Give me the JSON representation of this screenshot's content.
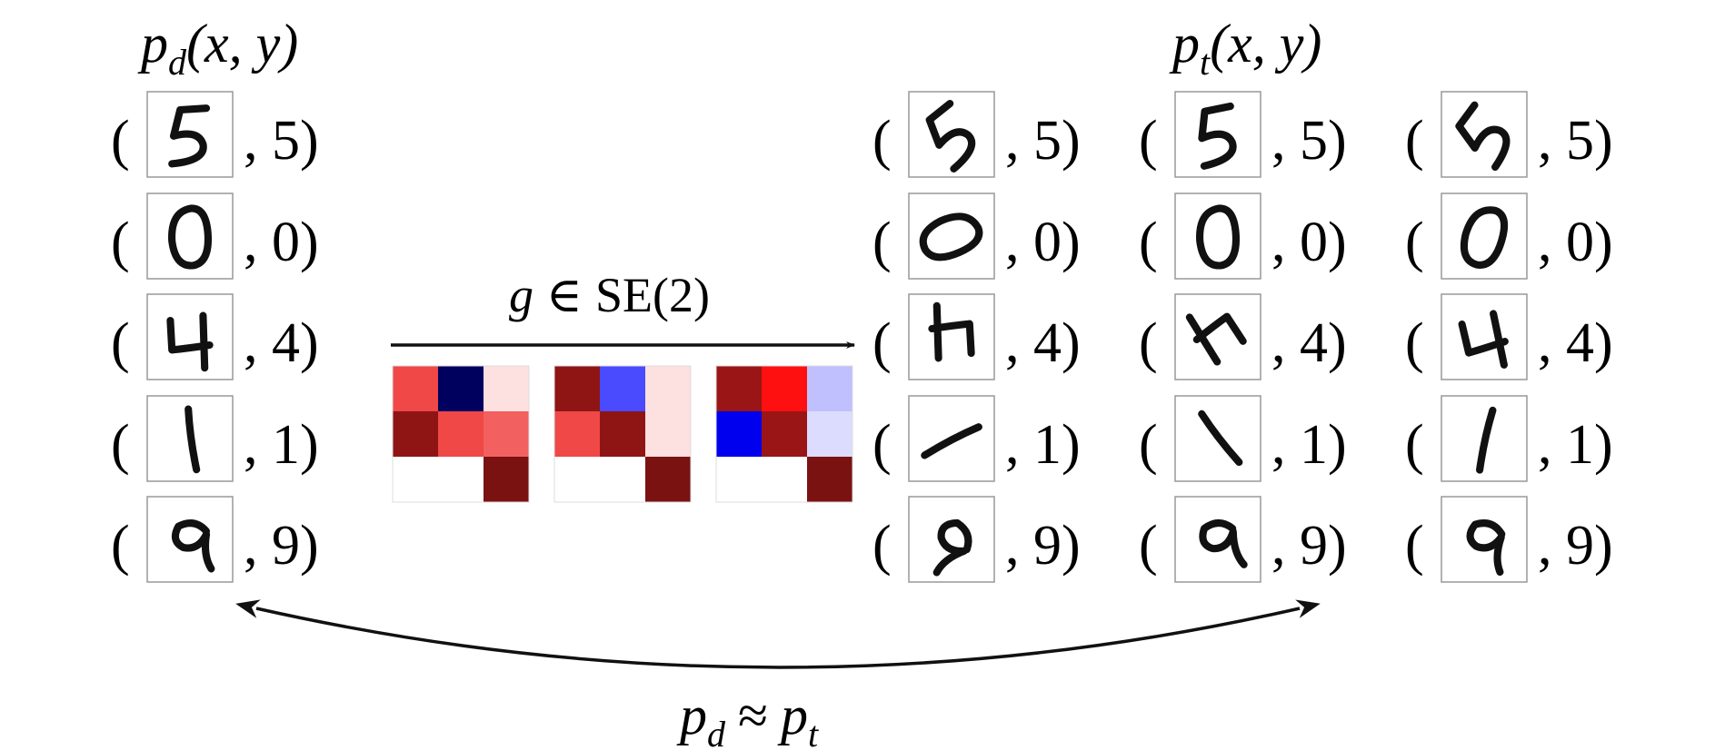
{
  "left": {
    "title_main": "p",
    "title_sub": "d",
    "title_args": "(x, y)",
    "rows": [
      {
        "label": "5"
      },
      {
        "label": "0"
      },
      {
        "label": "4"
      },
      {
        "label": "1"
      },
      {
        "label": "9"
      }
    ]
  },
  "right": {
    "title_main": "p",
    "title_sub": "t",
    "title_args": "(x, y)",
    "columns": 3,
    "rows": [
      {
        "label": "5"
      },
      {
        "label": "0"
      },
      {
        "label": "4"
      },
      {
        "label": "1"
      },
      {
        "label": "9"
      }
    ]
  },
  "transform": {
    "g": "g",
    "member": "∈",
    "group": "SE(2)"
  },
  "bottom": {
    "lhs": "p",
    "lhs_sub": "d",
    "approx": "≈",
    "rhs": "p",
    "rhs_sub": "t"
  },
  "matrices": [
    {
      "cells": [
        [
          "#f04747",
          "#00005f",
          "#fde0e0"
        ],
        [
          "#8f1515",
          "#f04747",
          "#f36060"
        ],
        [
          "#ffffff",
          "#ffffff",
          "#7a1212"
        ]
      ]
    },
    {
      "cells": [
        [
          "#8f1515",
          "#4a4aff",
          "#fde0e0"
        ],
        [
          "#f04747",
          "#8f1515",
          "#fde0e0"
        ],
        [
          "#ffffff",
          "#ffffff",
          "#7a1212"
        ]
      ]
    },
    {
      "cells": [
        [
          "#9a1515",
          "#ff1010",
          "#c0c0ff"
        ],
        [
          "#0000ee",
          "#9a1515",
          "#dcdcff"
        ],
        [
          "#ffffff",
          "#ffffff",
          "#7a1212"
        ]
      ]
    }
  ],
  "digit_icons": {
    "left": [
      "digit-5",
      "digit-0",
      "digit-4",
      "digit-1",
      "digit-9"
    ],
    "right": [
      [
        "digit-5-rot",
        "digit-5-tilt",
        "digit-5-skew"
      ],
      [
        "digit-0-rot",
        "digit-0-up",
        "digit-0-tilt"
      ],
      [
        "digit-4-rot",
        "digit-4-flip",
        "digit-4-tilt"
      ],
      [
        "digit-1-rot",
        "digit-1-tilt",
        "digit-1-lean"
      ],
      [
        "digit-9-rot",
        "digit-9-tilt",
        "digit-9-up"
      ]
    ]
  }
}
